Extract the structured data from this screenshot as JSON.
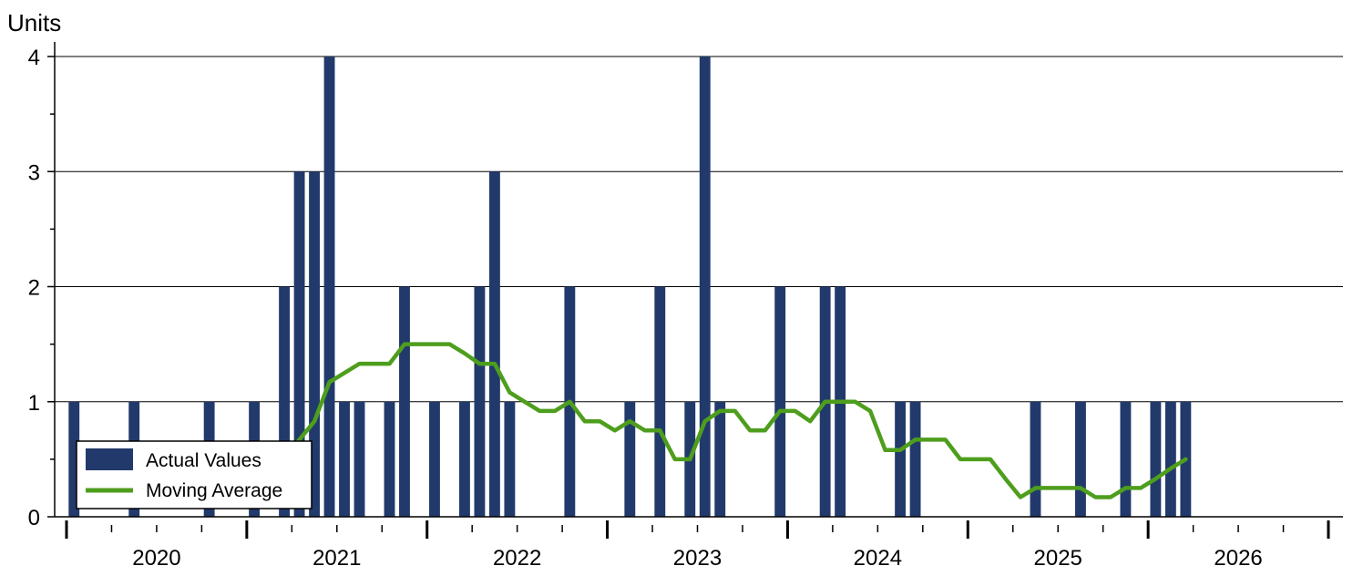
{
  "chart_data": {
    "type": "bar",
    "ylabel": "Units",
    "ylim": [
      0,
      4
    ],
    "yticks": [
      "0",
      "1",
      "2",
      "3",
      "4"
    ],
    "xlim": [
      "2020-01",
      "2026-12"
    ],
    "year_labels": [
      "2020",
      "2021",
      "2022",
      "2023",
      "2024",
      "2025",
      "2026"
    ],
    "grid": true,
    "legend_position": "bottom-left",
    "colors": {
      "bars": "#223A6B",
      "line": "#4E9E1D"
    },
    "series": [
      {
        "name": "Actual Values",
        "type": "bar",
        "points": [
          {
            "x": "2020-01",
            "y": 1
          },
          {
            "x": "2020-03",
            "y": 0
          },
          {
            "x": "2020-04",
            "y": 0
          },
          {
            "x": "2020-05",
            "y": 1
          },
          {
            "x": "2020-10",
            "y": 1
          },
          {
            "x": "2021-01",
            "y": 1
          },
          {
            "x": "2021-03",
            "y": 2
          },
          {
            "x": "2021-04",
            "y": 3
          },
          {
            "x": "2021-05",
            "y": 3
          },
          {
            "x": "2021-06",
            "y": 4
          },
          {
            "x": "2021-07",
            "y": 1
          },
          {
            "x": "2021-08",
            "y": 1
          },
          {
            "x": "2021-10",
            "y": 1
          },
          {
            "x": "2021-11",
            "y": 2
          },
          {
            "x": "2022-01",
            "y": 1
          },
          {
            "x": "2022-03",
            "y": 1
          },
          {
            "x": "2022-04",
            "y": 2
          },
          {
            "x": "2022-05",
            "y": 3
          },
          {
            "x": "2022-06",
            "y": 1
          },
          {
            "x": "2022-10",
            "y": 2
          },
          {
            "x": "2023-02",
            "y": 1
          },
          {
            "x": "2023-04",
            "y": 2
          },
          {
            "x": "2023-06",
            "y": 1
          },
          {
            "x": "2023-07",
            "y": 4
          },
          {
            "x": "2023-08",
            "y": 1
          },
          {
            "x": "2023-12",
            "y": 2
          },
          {
            "x": "2024-03",
            "y": 2
          },
          {
            "x": "2024-04",
            "y": 2
          },
          {
            "x": "2024-08",
            "y": 1
          },
          {
            "x": "2024-09",
            "y": 1
          },
          {
            "x": "2025-05",
            "y": 1
          },
          {
            "x": "2025-08",
            "y": 1
          },
          {
            "x": "2025-11",
            "y": 1
          },
          {
            "x": "2026-01",
            "y": 1
          },
          {
            "x": "2026-02",
            "y": 1
          },
          {
            "x": "2026-03",
            "y": 1
          }
        ]
      },
      {
        "name": "Moving Average",
        "type": "line",
        "points": [
          {
            "x": "2021-03",
            "y": 0.5
          },
          {
            "x": "2021-04",
            "y": 0.67
          },
          {
            "x": "2021-05",
            "y": 0.83
          },
          {
            "x": "2021-06",
            "y": 1.17
          },
          {
            "x": "2021-07",
            "y": 1.25
          },
          {
            "x": "2021-08",
            "y": 1.33
          },
          {
            "x": "2021-09",
            "y": 1.33
          },
          {
            "x": "2021-10",
            "y": 1.33
          },
          {
            "x": "2021-11",
            "y": 1.5
          },
          {
            "x": "2021-12",
            "y": 1.5
          },
          {
            "x": "2022-01",
            "y": 1.5
          },
          {
            "x": "2022-02",
            "y": 1.5
          },
          {
            "x": "2022-03",
            "y": 1.42
          },
          {
            "x": "2022-04",
            "y": 1.33
          },
          {
            "x": "2022-05",
            "y": 1.33
          },
          {
            "x": "2022-06",
            "y": 1.08
          },
          {
            "x": "2022-07",
            "y": 1.0
          },
          {
            "x": "2022-08",
            "y": 0.92
          },
          {
            "x": "2022-09",
            "y": 0.92
          },
          {
            "x": "2022-10",
            "y": 1.0
          },
          {
            "x": "2022-11",
            "y": 0.83
          },
          {
            "x": "2022-12",
            "y": 0.83
          },
          {
            "x": "2023-01",
            "y": 0.75
          },
          {
            "x": "2023-02",
            "y": 0.83
          },
          {
            "x": "2023-03",
            "y": 0.75
          },
          {
            "x": "2023-04",
            "y": 0.75
          },
          {
            "x": "2023-05",
            "y": 0.5
          },
          {
            "x": "2023-06",
            "y": 0.5
          },
          {
            "x": "2023-07",
            "y": 0.83
          },
          {
            "x": "2023-08",
            "y": 0.92
          },
          {
            "x": "2023-09",
            "y": 0.92
          },
          {
            "x": "2023-10",
            "y": 0.75
          },
          {
            "x": "2023-11",
            "y": 0.75
          },
          {
            "x": "2023-12",
            "y": 0.92
          },
          {
            "x": "2024-01",
            "y": 0.92
          },
          {
            "x": "2024-02",
            "y": 0.83
          },
          {
            "x": "2024-03",
            "y": 1.0
          },
          {
            "x": "2024-04",
            "y": 1.0
          },
          {
            "x": "2024-05",
            "y": 1.0
          },
          {
            "x": "2024-06",
            "y": 0.92
          },
          {
            "x": "2024-07",
            "y": 0.58
          },
          {
            "x": "2024-08",
            "y": 0.58
          },
          {
            "x": "2024-09",
            "y": 0.67
          },
          {
            "x": "2024-10",
            "y": 0.67
          },
          {
            "x": "2024-11",
            "y": 0.67
          },
          {
            "x": "2024-12",
            "y": 0.5
          },
          {
            "x": "2025-01",
            "y": 0.5
          },
          {
            "x": "2025-02",
            "y": 0.5
          },
          {
            "x": "2025-03",
            "y": 0.33
          },
          {
            "x": "2025-04",
            "y": 0.17
          },
          {
            "x": "2025-05",
            "y": 0.25
          },
          {
            "x": "2025-06",
            "y": 0.25
          },
          {
            "x": "2025-07",
            "y": 0.25
          },
          {
            "x": "2025-08",
            "y": 0.25
          },
          {
            "x": "2025-09",
            "y": 0.17
          },
          {
            "x": "2025-10",
            "y": 0.17
          },
          {
            "x": "2025-11",
            "y": 0.25
          },
          {
            "x": "2025-12",
            "y": 0.25
          },
          {
            "x": "2026-01",
            "y": 0.33
          },
          {
            "x": "2026-02",
            "y": 0.42
          },
          {
            "x": "2026-03",
            "y": 0.5
          }
        ]
      }
    ]
  }
}
